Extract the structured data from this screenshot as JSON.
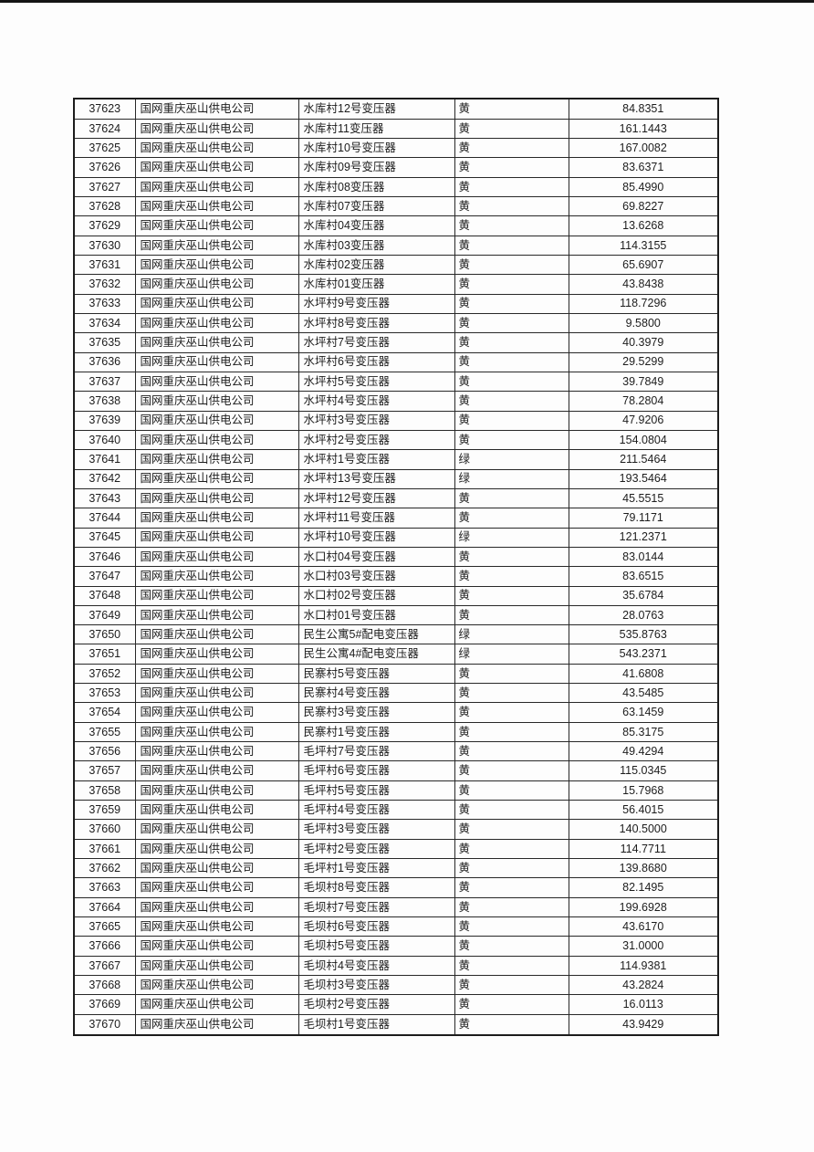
{
  "page": {
    "top_bar_color": "#151515",
    "background": "#fdfdfd",
    "grid_color": "#282828",
    "text_color": "#1d1d1d"
  },
  "table": {
    "cell_names": [
      "row-id-cell",
      "company-cell",
      "transformer-name-cell",
      "status-cell",
      "value-cell"
    ],
    "rows": [
      [
        "37623",
        "国网重庆巫山供电公司",
        "水库村12号变压器",
        "黄",
        "84.8351"
      ],
      [
        "37624",
        "国网重庆巫山供电公司",
        "水库村11变压器",
        "黄",
        "161.1443"
      ],
      [
        "37625",
        "国网重庆巫山供电公司",
        "水库村10号变压器",
        "黄",
        "167.0082"
      ],
      [
        "37626",
        "国网重庆巫山供电公司",
        "水库村09号变压器",
        "黄",
        "83.6371"
      ],
      [
        "37627",
        "国网重庆巫山供电公司",
        "水库村08变压器",
        "黄",
        "85.4990"
      ],
      [
        "37628",
        "国网重庆巫山供电公司",
        "水库村07变压器",
        "黄",
        "69.8227"
      ],
      [
        "37629",
        "国网重庆巫山供电公司",
        "水库村04变压器",
        "黄",
        "13.6268"
      ],
      [
        "37630",
        "国网重庆巫山供电公司",
        "水库村03变压器",
        "黄",
        "114.3155"
      ],
      [
        "37631",
        "国网重庆巫山供电公司",
        "水库村02变压器",
        "黄",
        "65.6907"
      ],
      [
        "37632",
        "国网重庆巫山供电公司",
        "水库村01变压器",
        "黄",
        "43.8438"
      ],
      [
        "37633",
        "国网重庆巫山供电公司",
        "水坪村9号变压器",
        "黄",
        "118.7296"
      ],
      [
        "37634",
        "国网重庆巫山供电公司",
        "水坪村8号变压器",
        "黄",
        "9.5800"
      ],
      [
        "37635",
        "国网重庆巫山供电公司",
        "水坪村7号变压器",
        "黄",
        "40.3979"
      ],
      [
        "37636",
        "国网重庆巫山供电公司",
        "水坪村6号变压器",
        "黄",
        "29.5299"
      ],
      [
        "37637",
        "国网重庆巫山供电公司",
        "水坪村5号变压器",
        "黄",
        "39.7849"
      ],
      [
        "37638",
        "国网重庆巫山供电公司",
        "水坪村4号变压器",
        "黄",
        "78.2804"
      ],
      [
        "37639",
        "国网重庆巫山供电公司",
        "水坪村3号变压器",
        "黄",
        "47.9206"
      ],
      [
        "37640",
        "国网重庆巫山供电公司",
        "水坪村2号变压器",
        "黄",
        "154.0804"
      ],
      [
        "37641",
        "国网重庆巫山供电公司",
        "水坪村1号变压器",
        "绿",
        "211.5464"
      ],
      [
        "37642",
        "国网重庆巫山供电公司",
        "水坪村13号变压器",
        "绿",
        "193.5464"
      ],
      [
        "37643",
        "国网重庆巫山供电公司",
        "水坪村12号变压器",
        "黄",
        "45.5515"
      ],
      [
        "37644",
        "国网重庆巫山供电公司",
        "水坪村11号变压器",
        "黄",
        "79.1171"
      ],
      [
        "37645",
        "国网重庆巫山供电公司",
        "水坪村10号变压器",
        "绿",
        "121.2371"
      ],
      [
        "37646",
        "国网重庆巫山供电公司",
        "水口村04号变压器",
        "黄",
        "83.0144"
      ],
      [
        "37647",
        "国网重庆巫山供电公司",
        "水口村03号变压器",
        "黄",
        "83.6515"
      ],
      [
        "37648",
        "国网重庆巫山供电公司",
        "水口村02号变压器",
        "黄",
        "35.6784"
      ],
      [
        "37649",
        "国网重庆巫山供电公司",
        "水口村01号变压器",
        "黄",
        "28.0763"
      ],
      [
        "37650",
        "国网重庆巫山供电公司",
        "民生公寓5#配电变压器",
        "绿",
        "535.8763"
      ],
      [
        "37651",
        "国网重庆巫山供电公司",
        "民生公寓4#配电变压器",
        "绿",
        "543.2371"
      ],
      [
        "37652",
        "国网重庆巫山供电公司",
        "民寨村5号变压器",
        "黄",
        "41.6808"
      ],
      [
        "37653",
        "国网重庆巫山供电公司",
        "民寨村4号变压器",
        "黄",
        "43.5485"
      ],
      [
        "37654",
        "国网重庆巫山供电公司",
        "民寨村3号变压器",
        "黄",
        "63.1459"
      ],
      [
        "37655",
        "国网重庆巫山供电公司",
        "民寨村1号变压器",
        "黄",
        "85.3175"
      ],
      [
        "37656",
        "国网重庆巫山供电公司",
        "毛坪村7号变压器",
        "黄",
        "49.4294"
      ],
      [
        "37657",
        "国网重庆巫山供电公司",
        "毛坪村6号变压器",
        "黄",
        "115.0345"
      ],
      [
        "37658",
        "国网重庆巫山供电公司",
        "毛坪村5号变压器",
        "黄",
        "15.7968"
      ],
      [
        "37659",
        "国网重庆巫山供电公司",
        "毛坪村4号变压器",
        "黄",
        "56.4015"
      ],
      [
        "37660",
        "国网重庆巫山供电公司",
        "毛坪村3号变压器",
        "黄",
        "140.5000"
      ],
      [
        "37661",
        "国网重庆巫山供电公司",
        "毛坪村2号变压器",
        "黄",
        "114.7711"
      ],
      [
        "37662",
        "国网重庆巫山供电公司",
        "毛坪村1号变压器",
        "黄",
        "139.8680"
      ],
      [
        "37663",
        "国网重庆巫山供电公司",
        "毛坝村8号变压器",
        "黄",
        "82.1495"
      ],
      [
        "37664",
        "国网重庆巫山供电公司",
        "毛坝村7号变压器",
        "黄",
        "199.6928"
      ],
      [
        "37665",
        "国网重庆巫山供电公司",
        "毛坝村6号变压器",
        "黄",
        "43.6170"
      ],
      [
        "37666",
        "国网重庆巫山供电公司",
        "毛坝村5号变压器",
        "黄",
        "31.0000"
      ],
      [
        "37667",
        "国网重庆巫山供电公司",
        "毛坝村4号变压器",
        "黄",
        "114.9381"
      ],
      [
        "37668",
        "国网重庆巫山供电公司",
        "毛坝村3号变压器",
        "黄",
        "43.2824"
      ],
      [
        "37669",
        "国网重庆巫山供电公司",
        "毛坝村2号变压器",
        "黄",
        "16.0113"
      ],
      [
        "37670",
        "国网重庆巫山供电公司",
        "毛坝村1号变压器",
        "黄",
        "43.9429"
      ]
    ]
  }
}
